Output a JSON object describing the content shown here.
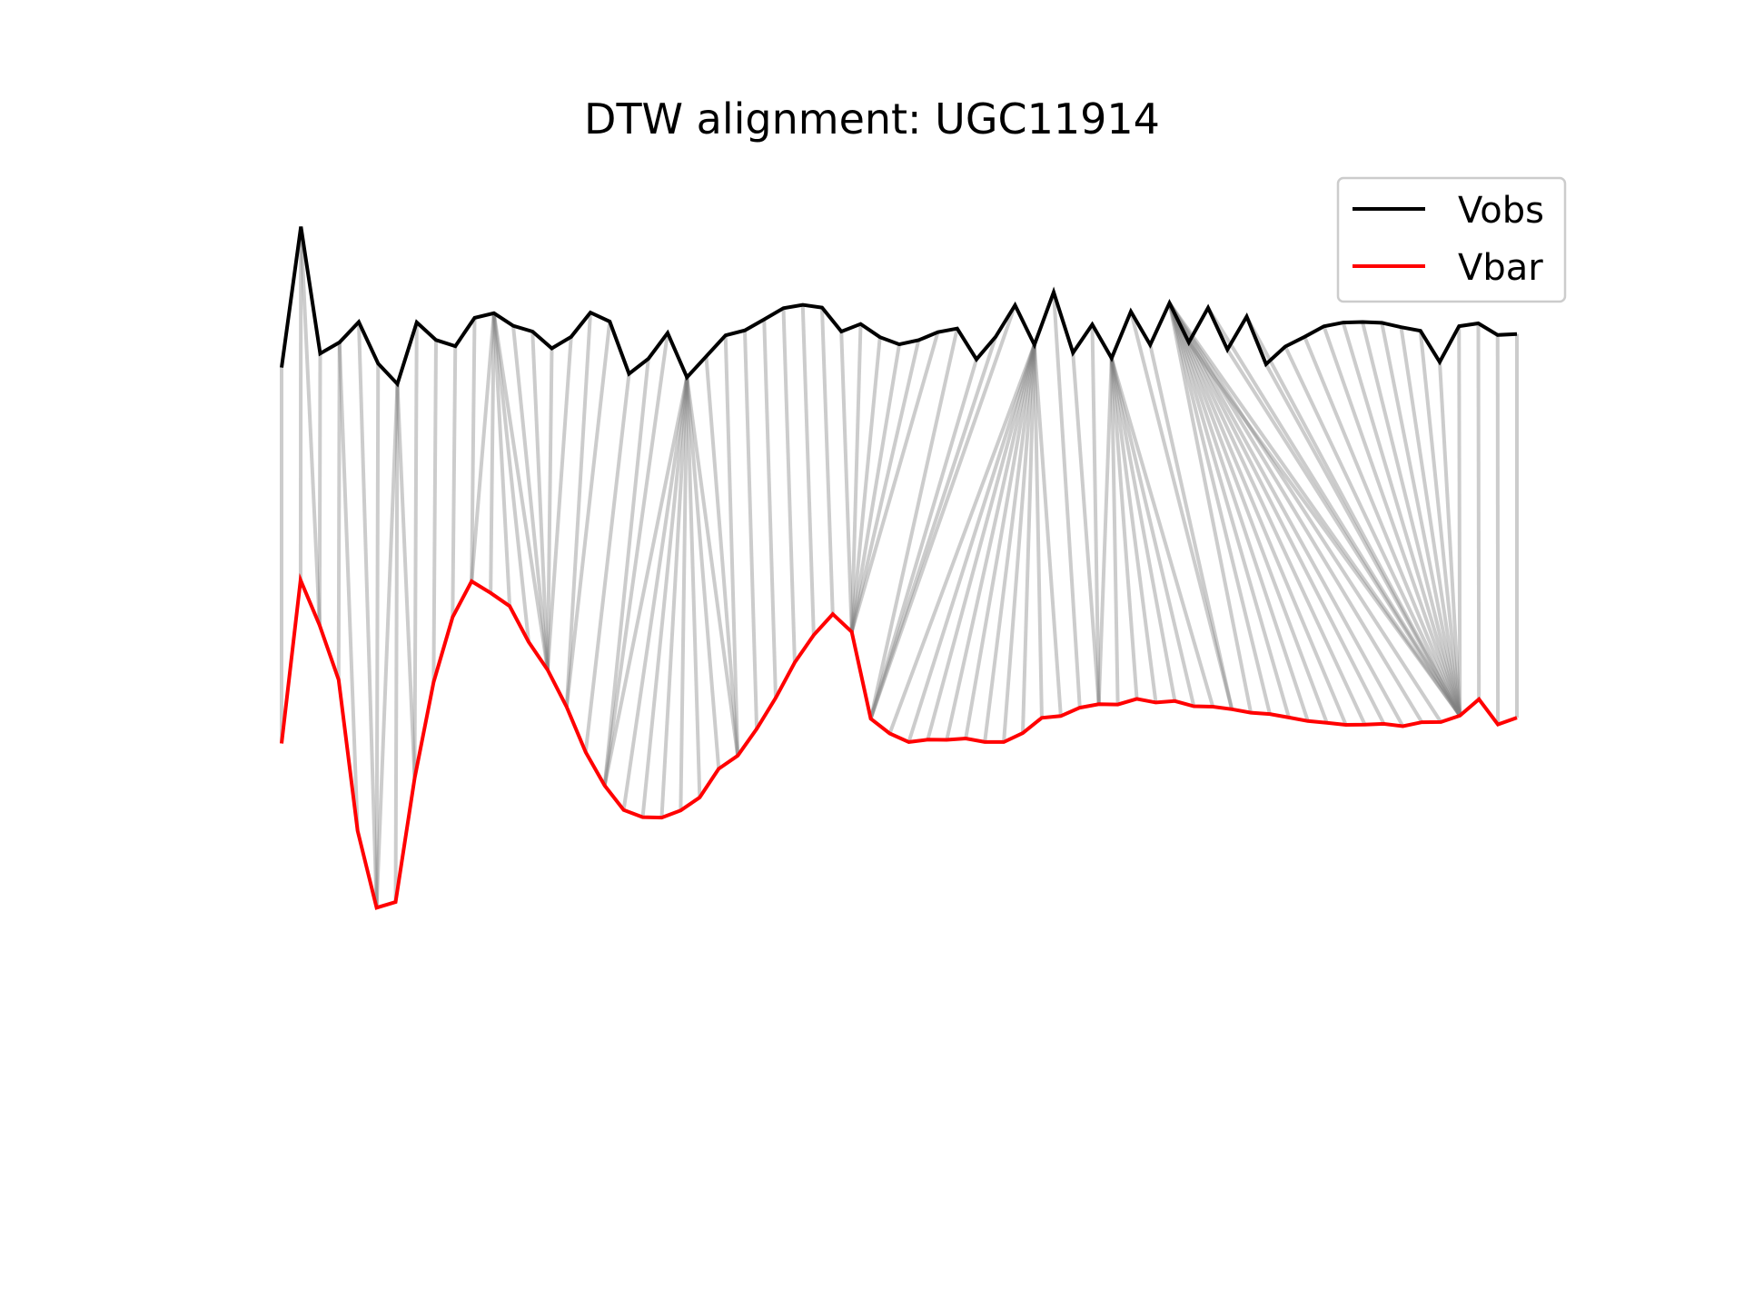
{
  "chart_data": {
    "type": "line",
    "title": "DTW alignment: UGC11914",
    "xlabel": "",
    "ylabel": "",
    "axes_visible": false,
    "grid": false,
    "legend_placement": "top-right",
    "series": [
      {
        "name": "Vobs",
        "color": "#000000",
        "values": [
          88.8,
          159.3,
          95.8,
          101.4,
          111.6,
          90.8,
          80.6,
          111.4,
          102.6,
          99.5,
          113.7,
          116.0,
          109.7,
          106.8,
          98.4,
          104.2,
          116.3,
          111.8,
          85.7,
          93.2,
          106.1,
          83.9,
          94.4,
          104.9,
          107.4,
          112.9,
          118.5,
          120.2,
          118.8,
          106.8,
          110.6,
          104.0,
          100.4,
          102.5,
          106.5,
          108.3,
          92.9,
          104.3,
          120.0,
          100.2,
          126.5,
          96.2,
          110.3,
          93.5,
          116.8,
          100.2,
          121.1,
          101.4,
          118.7,
          97.8,
          114.3,
          90.5,
          99.3,
          104.2,
          109.4,
          111.3,
          111.6,
          111.2,
          109.0,
          107.2,
          91.6,
          109.5,
          110.9,
          105.1,
          105.6
        ]
      },
      {
        "name": "Vbar",
        "color": "#ff0000",
        "values": [
          -99.3,
          -17.6,
          -40.1,
          -67.4,
          -143.0,
          -181.5,
          -178.7,
          -116.7,
          -68.6,
          -36.1,
          -18.2,
          -24.0,
          -30.6,
          -48.5,
          -62.5,
          -81.0,
          -103.7,
          -120.4,
          -132.6,
          -136.2,
          -136.4,
          -132.8,
          -126.3,
          -112.0,
          -105.4,
          -92.0,
          -76.5,
          -58.8,
          -45.1,
          -34.6,
          -43.5,
          -86.9,
          -94.3,
          -98.6,
          -97.4,
          -97.5,
          -96.8,
          -98.6,
          -98.6,
          -94.1,
          -86.5,
          -85.6,
          -81.4,
          -79.7,
          -79.8,
          -77.0,
          -78.8,
          -78.1,
          -80.7,
          -80.9,
          -82.2,
          -83.9,
          -84.6,
          -86.3,
          -88.1,
          -89.0,
          -90.0,
          -89.9,
          -89.5,
          -90.7,
          -88.7,
          -88.6,
          -85.4,
          -77.2,
          -89.8,
          -86.4
        ]
      }
    ],
    "alignment_path": [
      [
        0,
        0
      ],
      [
        1,
        1
      ],
      [
        1,
        2
      ],
      [
        2,
        2
      ],
      [
        3,
        3
      ],
      [
        3,
        4
      ],
      [
        4,
        5
      ],
      [
        5,
        5
      ],
      [
        6,
        5
      ],
      [
        6,
        6
      ],
      [
        6,
        7
      ],
      [
        7,
        7
      ],
      [
        8,
        8
      ],
      [
        9,
        9
      ],
      [
        10,
        10
      ],
      [
        11,
        10
      ],
      [
        11,
        11
      ],
      [
        11,
        12
      ],
      [
        11,
        13
      ],
      [
        11,
        14
      ],
      [
        12,
        14
      ],
      [
        13,
        14
      ],
      [
        14,
        14
      ],
      [
        15,
        14
      ],
      [
        16,
        15
      ],
      [
        17,
        15
      ],
      [
        18,
        16
      ],
      [
        19,
        17
      ],
      [
        20,
        17
      ],
      [
        21,
        17
      ],
      [
        21,
        18
      ],
      [
        21,
        19
      ],
      [
        21,
        20
      ],
      [
        21,
        21
      ],
      [
        21,
        22
      ],
      [
        21,
        23
      ],
      [
        21,
        24
      ],
      [
        22,
        24
      ],
      [
        23,
        24
      ],
      [
        24,
        25
      ],
      [
        25,
        26
      ],
      [
        26,
        27
      ],
      [
        27,
        28
      ],
      [
        28,
        29
      ],
      [
        29,
        30
      ],
      [
        30,
        30
      ],
      [
        31,
        30
      ],
      [
        32,
        30
      ],
      [
        33,
        30
      ],
      [
        34,
        30
      ],
      [
        35,
        31
      ],
      [
        36,
        31
      ],
      [
        37,
        31
      ],
      [
        38,
        31
      ],
      [
        39,
        32
      ],
      [
        39,
        33
      ],
      [
        39,
        34
      ],
      [
        39,
        35
      ],
      [
        39,
        36
      ],
      [
        39,
        37
      ],
      [
        39,
        38
      ],
      [
        39,
        39
      ],
      [
        39,
        40
      ],
      [
        39,
        41
      ],
      [
        40,
        42
      ],
      [
        41,
        43
      ],
      [
        42,
        43
      ],
      [
        43,
        43
      ],
      [
        43,
        44
      ],
      [
        43,
        45
      ],
      [
        43,
        46
      ],
      [
        43,
        47
      ],
      [
        43,
        48
      ],
      [
        43,
        49
      ],
      [
        44,
        50
      ],
      [
        45,
        50
      ],
      [
        46,
        51
      ],
      [
        46,
        52
      ],
      [
        46,
        53
      ],
      [
        46,
        54
      ],
      [
        46,
        55
      ],
      [
        46,
        56
      ],
      [
        46,
        57
      ],
      [
        46,
        58
      ],
      [
        46,
        59
      ],
      [
        46,
        60
      ],
      [
        46,
        61
      ],
      [
        46,
        62
      ],
      [
        47,
        62
      ],
      [
        48,
        62
      ],
      [
        49,
        62
      ],
      [
        50,
        62
      ],
      [
        51,
        62
      ],
      [
        52,
        62
      ],
      [
        53,
        62
      ],
      [
        54,
        62
      ],
      [
        55,
        62
      ],
      [
        56,
        62
      ],
      [
        57,
        62
      ],
      [
        58,
        62
      ],
      [
        59,
        62
      ],
      [
        60,
        62
      ],
      [
        61,
        62
      ],
      [
        62,
        63
      ],
      [
        63,
        64
      ],
      [
        64,
        65
      ]
    ]
  },
  "legend": {
    "items": [
      {
        "label": "Vobs",
        "color": "#000000"
      },
      {
        "label": "Vbar",
        "color": "#ff0000"
      }
    ]
  }
}
